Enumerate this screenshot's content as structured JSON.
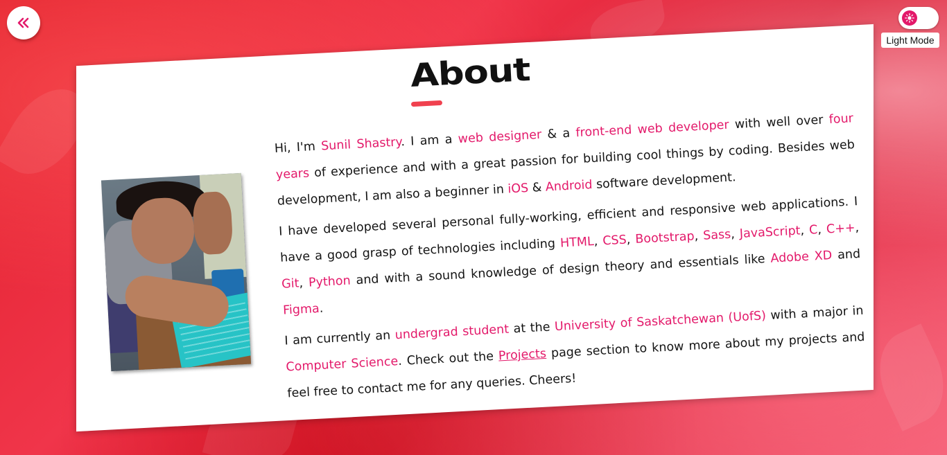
{
  "nav": {
    "back_icon": "double-chevron-left-icon",
    "mode_icon": "sun-icon",
    "mode_label": "Light Mode"
  },
  "colors": {
    "accent": "#e3196a",
    "underline": "#f0414f"
  },
  "about": {
    "title": "About",
    "paragraphs": [
      [
        {
          "t": "Hi, I'm "
        },
        {
          "t": "Sunil Shastry",
          "hl": true
        },
        {
          "t": ". I am a "
        },
        {
          "t": "web designer",
          "hl": true
        },
        {
          "t": " & a "
        },
        {
          "t": "front-end web developer",
          "hl": true
        },
        {
          "t": " with well over "
        },
        {
          "t": "four years",
          "hl": true
        },
        {
          "t": " of experience and with a great passion for building cool things by coding. Besides web development, I am also a beginner in "
        },
        {
          "t": "iOS",
          "hl": true
        },
        {
          "t": " & "
        },
        {
          "t": "Android",
          "hl": true
        },
        {
          "t": " software development."
        }
      ],
      [
        {
          "t": "I have developed several personal fully-working, efficient and responsive web applications. I have a good grasp of technologies including "
        },
        {
          "t": "HTML",
          "hl": true
        },
        {
          "t": ", "
        },
        {
          "t": "CSS",
          "hl": true
        },
        {
          "t": ", "
        },
        {
          "t": "Bootstrap",
          "hl": true
        },
        {
          "t": ", "
        },
        {
          "t": "Sass",
          "hl": true
        },
        {
          "t": ", "
        },
        {
          "t": "JavaScript",
          "hl": true
        },
        {
          "t": ", "
        },
        {
          "t": "C",
          "hl": true
        },
        {
          "t": ", "
        },
        {
          "t": "C++",
          "hl": true
        },
        {
          "t": ", "
        },
        {
          "t": "Git",
          "hl": true
        },
        {
          "t": ", "
        },
        {
          "t": "Python",
          "hl": true
        },
        {
          "t": " and with a sound knowledge of design theory and essentials like "
        },
        {
          "t": "Adobe XD",
          "hl": true
        },
        {
          "t": " and "
        },
        {
          "t": "Figma",
          "hl": true
        },
        {
          "t": "."
        }
      ],
      [
        {
          "t": "I am currently an "
        },
        {
          "t": "undergrad student",
          "hl": true
        },
        {
          "t": " at the "
        },
        {
          "t": "University of Saskatchewan (UofS)",
          "hl": true
        },
        {
          "t": " with a major in "
        },
        {
          "t": "Computer Science",
          "hl": true
        },
        {
          "t": ". Check out the "
        },
        {
          "t": "Projects",
          "link": true
        },
        {
          "t": " page section to know more about my projects and feel free to contact me for any queries. Cheers!"
        }
      ]
    ]
  }
}
